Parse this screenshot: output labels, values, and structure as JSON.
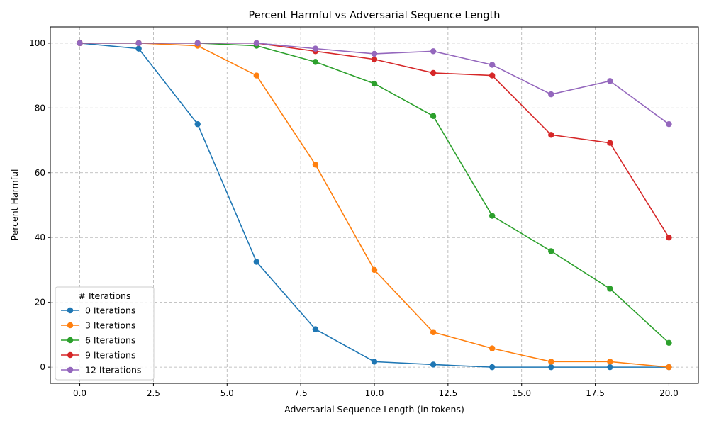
{
  "chart_data": {
    "type": "line",
    "title": "Percent Harmful vs Adversarial Sequence Length",
    "xlabel": "Adversarial Sequence Length (in tokens)",
    "ylabel": "Percent Harmful",
    "xlim": [
      -1.0,
      21.0
    ],
    "ylim": [
      -5,
      105
    ],
    "xticks": [
      0.0,
      2.5,
      5.0,
      7.5,
      10.0,
      12.5,
      15.0,
      17.5,
      20.0
    ],
    "xtick_labels": [
      "0.0",
      "2.5",
      "5.0",
      "7.5",
      "10.0",
      "12.5",
      "15.0",
      "17.5",
      "20.0"
    ],
    "yticks": [
      0,
      20,
      40,
      60,
      80,
      100
    ],
    "ytick_labels": [
      "0",
      "20",
      "40",
      "60",
      "80",
      "100"
    ],
    "grid": true,
    "legend": {
      "title": "# Iterations",
      "placement": "lower-left"
    },
    "x": [
      0,
      2,
      4,
      6,
      8,
      10,
      12,
      14,
      16,
      18,
      20
    ],
    "series": [
      {
        "name": "0 Iterations",
        "color": "#1f77b4",
        "values": [
          100,
          98.3,
          75,
          32.5,
          11.7,
          1.7,
          0.8,
          0,
          0,
          0,
          0
        ]
      },
      {
        "name": "3 Iterations",
        "color": "#ff7f0e",
        "values": [
          100,
          100,
          99.2,
          90,
          62.5,
          30,
          10.8,
          5.8,
          1.7,
          1.7,
          0
        ]
      },
      {
        "name": "6 Iterations",
        "color": "#2ca02c",
        "values": [
          100,
          100,
          100,
          99.2,
          94.2,
          87.5,
          77.5,
          46.7,
          35.8,
          24.2,
          7.5
        ]
      },
      {
        "name": "9 Iterations",
        "color": "#d62728",
        "values": [
          100,
          100,
          100,
          100,
          97.5,
          95,
          90.8,
          90,
          71.7,
          69.2,
          40
        ]
      },
      {
        "name": "12 Iterations",
        "color": "#9467bd",
        "values": [
          100,
          100,
          100,
          100,
          98.3,
          96.7,
          97.5,
          93.3,
          84.2,
          88.3,
          75
        ]
      }
    ]
  }
}
